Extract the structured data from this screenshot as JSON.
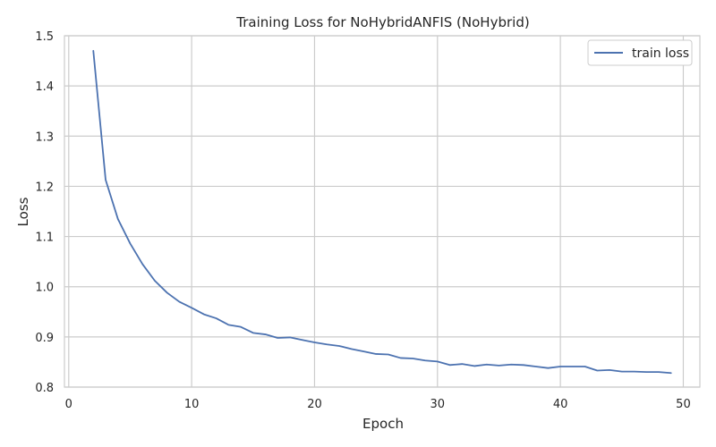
{
  "chart_data": {
    "type": "line",
    "title": "Training Loss for NoHybridANFIS (NoHybrid)",
    "xlabel": "Epoch",
    "ylabel": "Loss",
    "xlim": [
      -0.35,
      51.35
    ],
    "ylim": [
      0.8,
      1.5
    ],
    "xticks": [
      0,
      10,
      20,
      30,
      40,
      50
    ],
    "yticks": [
      0.8,
      0.9,
      1.0,
      1.1,
      1.2,
      1.3,
      1.4,
      1.5
    ],
    "xtick_labels": [
      "0",
      "10",
      "20",
      "30",
      "40",
      "50"
    ],
    "ytick_labels": [
      "0.8",
      "0.9",
      "1.0",
      "1.1",
      "1.2",
      "1.3",
      "1.4",
      "1.5"
    ],
    "grid": true,
    "legend_position": "top-right",
    "series": [
      {
        "name": "train loss",
        "color": "#4c72b0",
        "x": [
          2,
          3,
          4,
          5,
          6,
          7,
          8,
          9,
          10,
          11,
          12,
          13,
          14,
          15,
          16,
          17,
          18,
          19,
          20,
          21,
          22,
          23,
          24,
          25,
          26,
          27,
          28,
          29,
          30,
          31,
          32,
          33,
          34,
          35,
          36,
          37,
          38,
          39,
          40,
          41,
          42,
          43,
          44,
          45,
          46,
          47,
          48,
          49
        ],
        "y": [
          1.47,
          1.213,
          1.135,
          1.086,
          1.045,
          1.012,
          0.988,
          0.97,
          0.958,
          0.945,
          0.937,
          0.924,
          0.92,
          0.908,
          0.905,
          0.898,
          0.899,
          0.894,
          0.889,
          0.885,
          0.882,
          0.876,
          0.871,
          0.866,
          0.865,
          0.858,
          0.857,
          0.853,
          0.851,
          0.844,
          0.846,
          0.842,
          0.845,
          0.843,
          0.845,
          0.844,
          0.841,
          0.838,
          0.841,
          0.841,
          0.841,
          0.833,
          0.834,
          0.831,
          0.831,
          0.83,
          0.83,
          0.828
        ]
      }
    ]
  }
}
